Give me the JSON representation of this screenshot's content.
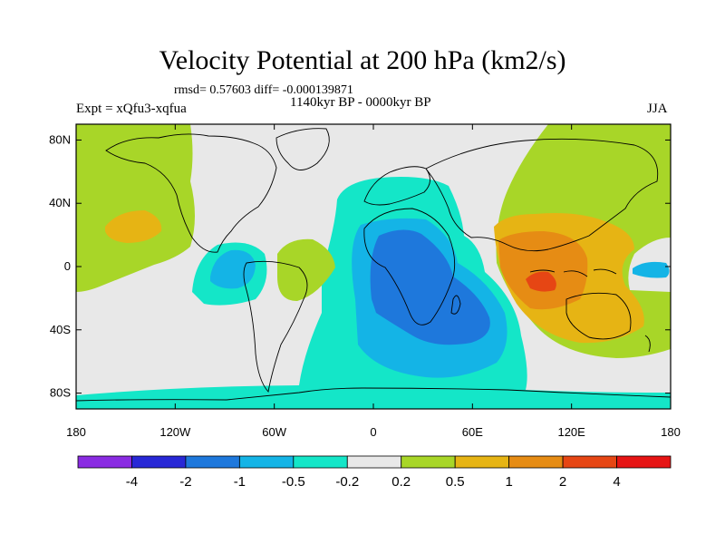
{
  "title": "Velocity Potential at 200 hPa (km2/s)",
  "stats": "rmsd= 0.57603 diff= -0.000139871",
  "experiment": "Expt = xQfu3-xqfua",
  "period": "1140kyr BP - 0000kyr BP",
  "season": "JJA",
  "axes": {
    "x_ticks": [
      "180",
      "120W",
      "60W",
      "0",
      "60E",
      "120E",
      "180"
    ],
    "y_ticks": [
      "80N",
      "40N",
      "0",
      "40S",
      "80S"
    ]
  },
  "colorbar": {
    "colors": [
      "#8a2be2",
      "#2828d6",
      "#1e78dc",
      "#14b4e6",
      "#14e6c8",
      "#e8e8e8",
      "#a8d628",
      "#e6b414",
      "#e68c14",
      "#e64614",
      "#e61414"
    ],
    "labels": [
      "-4",
      "-2",
      "-1",
      "-0.5",
      "-0.2",
      "0.2",
      "0.5",
      "1",
      "2",
      "4"
    ]
  },
  "colors": {
    "neutral": "#e8e8e8",
    "pos_light": "#a8d628",
    "pos_mid": "#e6b414",
    "pos_high": "#e68c14",
    "pos_peak": "#e64614",
    "neg_light": "#14e6c8",
    "neg_mid": "#14b4e6",
    "neg_high": "#1e78dc"
  }
}
